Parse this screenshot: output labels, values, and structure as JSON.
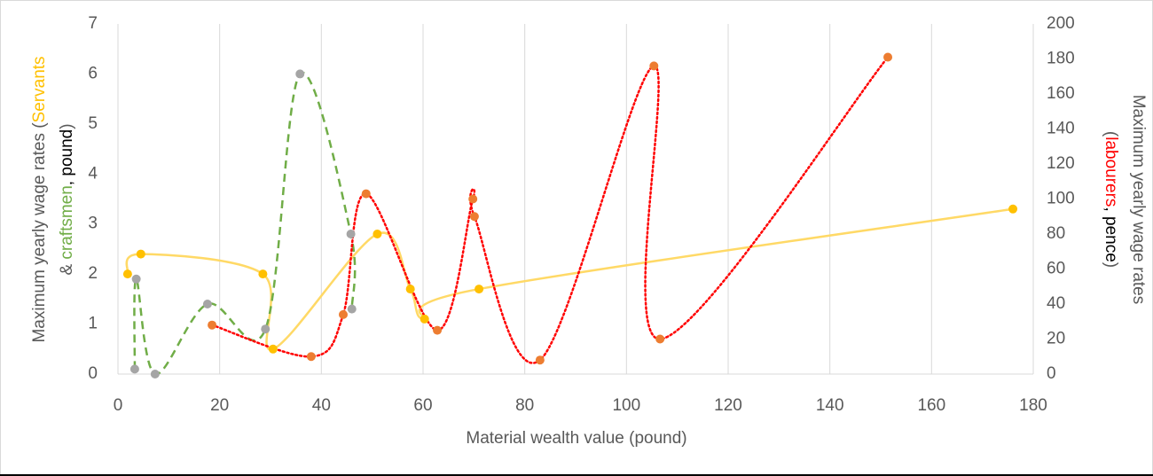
{
  "chart_data": {
    "type": "scatter",
    "x_title": "Material wealth value (pound)",
    "y_title": {
      "line1": [
        "Maximum yearly wage rates (",
        "Servants"
      ],
      "line2": [
        "& ",
        "craftsmen",
        ", ",
        "pound",
        ")"
      ]
    },
    "y2_title": {
      "line1": [
        "Maximum yearly wage rates"
      ],
      "line2": [
        "(",
        "labourers",
        ", ",
        "pence",
        ")"
      ]
    },
    "xlim": [
      0,
      180
    ],
    "xticks": [
      0,
      20,
      40,
      60,
      80,
      100,
      120,
      140,
      160,
      180
    ],
    "ylim": [
      0,
      7
    ],
    "yticks": [
      0,
      1,
      2,
      3,
      4,
      5,
      6,
      7
    ],
    "y2lim": [
      0,
      200
    ],
    "y2ticks": [
      0,
      20,
      40,
      60,
      80,
      100,
      120,
      140,
      160,
      180,
      200
    ],
    "grid": "vertical",
    "series": [
      {
        "marker_color": "#ffc000",
        "line_color": "#ffd966",
        "line_style": "solid",
        "axis": "y",
        "x": [
          1.9,
          4.5,
          28.5,
          30.5,
          51,
          57.5,
          60.3,
          71,
          176
        ],
        "values": [
          2.0,
          2.4,
          2.0,
          0.5,
          2.8,
          1.7,
          1.1,
          1.7,
          3.3
        ]
      },
      {
        "marker_color": "#a5a5a5",
        "line_color": "#70ad47",
        "line_style": "dashed",
        "axis": "y",
        "x": [
          3.3,
          3.6,
          7.3,
          17.6,
          29,
          35.8,
          45.8,
          46
        ],
        "values": [
          0.1,
          1.9,
          0.0,
          1.4,
          0.9,
          6.0,
          2.8,
          1.3
        ]
      },
      {
        "marker_color": "#ed7d31",
        "line_color": "#ff0000",
        "line_style": "dotted",
        "axis": "y2",
        "x": [
          18.5,
          38,
          44.3,
          48.8,
          62.8,
          69.8,
          70.1,
          83,
          105.4,
          106.6,
          151.4
        ],
        "values": [
          28,
          10,
          34,
          103,
          25,
          100,
          90,
          8,
          176,
          20,
          181
        ]
      }
    ]
  }
}
